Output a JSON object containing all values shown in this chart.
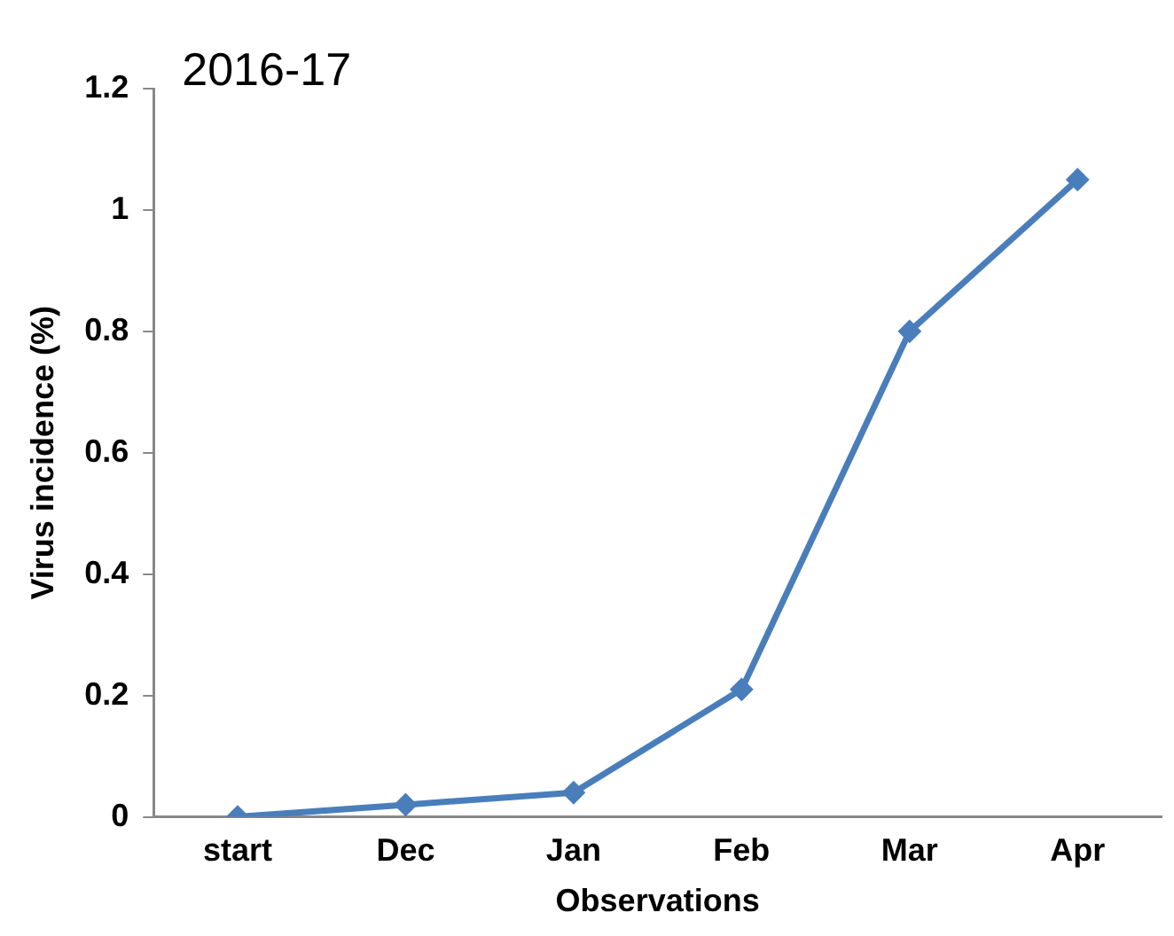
{
  "chart_data": {
    "type": "line",
    "title": "2016-17",
    "xlabel": "Observations",
    "ylabel": "Virus incidence (%)",
    "categories": [
      "start",
      "Dec",
      "Jan",
      "Feb",
      "Mar",
      "Apr"
    ],
    "series": [
      {
        "color": "#4a7ebb",
        "values": [
          0,
          0.02,
          0.04,
          0.21,
          0.8,
          1.05
        ]
      }
    ],
    "ylim": [
      0,
      1.2
    ],
    "yticks": [
      0,
      0.2,
      0.4,
      0.6,
      0.8,
      1,
      1.2
    ],
    "grid": false,
    "legend": false,
    "marker": "diamond",
    "line_style": "solid"
  }
}
